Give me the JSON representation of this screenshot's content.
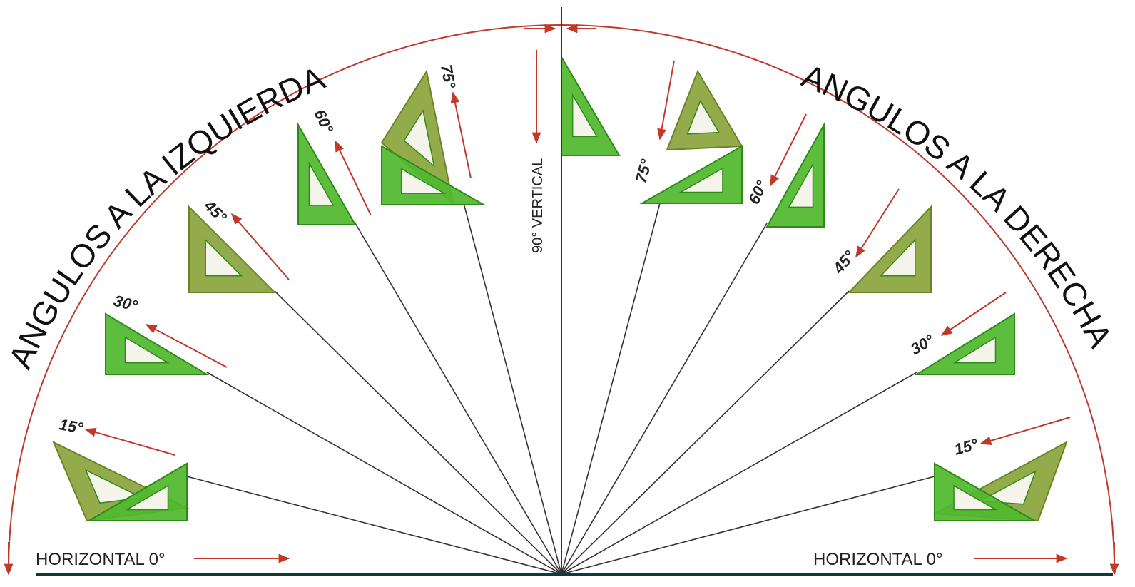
{
  "title_left": "ANGULOS A LA IZQUIERDA",
  "title_right": "ANGULOS A LA DERECHA",
  "vertical_label": "90° VERTICAL",
  "left_angles": [
    "15°",
    "30°",
    "45°",
    "60°",
    "75°"
  ],
  "right_angles": [
    "15°",
    "30°",
    "45°",
    "60°",
    "75°"
  ],
  "horizontal_left": "HORIZONTAL 0°",
  "horizontal_right": "HORIZONTAL 0°"
}
